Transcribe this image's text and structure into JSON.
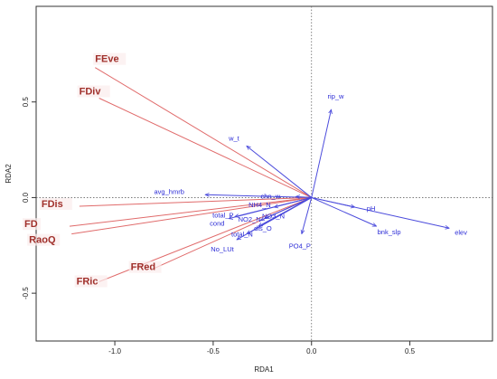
{
  "chart_data": {
    "type": "scatter",
    "subtype": "rda-biplot",
    "xlabel": "RDA1",
    "ylabel": "RDA2",
    "xlim": [
      -1.4,
      0.92
    ],
    "ylim": [
      -0.75,
      1.0
    ],
    "x_ticks": [
      -1.0,
      -0.5,
      0.0,
      0.5
    ],
    "x_tick_labels": [
      "-1.0",
      "-0.5",
      "0.0",
      "0.5"
    ],
    "y_ticks": [
      -0.5,
      0.0,
      0.5
    ],
    "y_tick_labels": [
      "-0.5",
      "0.0",
      "0.5"
    ],
    "reference_lines": {
      "x": 0,
      "y": 0,
      "style": "dotted"
    },
    "colors": {
      "environment": "#4b4bdc",
      "functional": "#e06a6a",
      "functional_label": "#a0302b"
    },
    "environment_vectors": [
      {
        "name": "rip_w",
        "x": 0.1,
        "y": 0.46
      },
      {
        "name": "w_t",
        "x": -0.33,
        "y": 0.27
      },
      {
        "name": "avg_hmrb",
        "x": -0.54,
        "y": 0.015
      },
      {
        "name": "chn_w",
        "x": -0.08,
        "y": 0.005
      },
      {
        "name": "pH",
        "x": 0.22,
        "y": -0.05
      },
      {
        "name": "elev",
        "x": 0.7,
        "y": -0.16
      },
      {
        "name": "bnk_slp",
        "x": 0.33,
        "y": -0.15
      },
      {
        "name": "NH4_N",
        "x": -0.19,
        "y": -0.05
      },
      {
        "name": "total_P",
        "x": -0.39,
        "y": -0.1
      },
      {
        "name": "cond",
        "x": -0.42,
        "y": -0.11
      },
      {
        "name": "NO2_N",
        "x": -0.26,
        "y": -0.12
      },
      {
        "name": "NO3_N",
        "x": -0.24,
        "y": -0.11
      },
      {
        "name": "dis_O",
        "x": -0.27,
        "y": -0.15
      },
      {
        "name": "total_N",
        "x": -0.33,
        "y": -0.19
      },
      {
        "name": "No_LUt",
        "x": -0.38,
        "y": -0.22
      },
      {
        "name": "PO4_P",
        "x": -0.05,
        "y": -0.19
      }
    ],
    "functional_vectors": [
      {
        "name": "FEve",
        "x": -1.1,
        "y": 0.68
      },
      {
        "name": "FDiv",
        "x": -1.08,
        "y": 0.52
      },
      {
        "name": "FDis",
        "x": -1.18,
        "y": -0.045
      },
      {
        "name": "FD",
        "x": -1.23,
        "y": -0.15
      },
      {
        "name": "RaoQ",
        "x": -1.22,
        "y": -0.19
      },
      {
        "name": "FRic",
        "x": -1.08,
        "y": -0.44
      },
      {
        "name": "FRed",
        "x": -0.8,
        "y": -0.37
      }
    ]
  }
}
